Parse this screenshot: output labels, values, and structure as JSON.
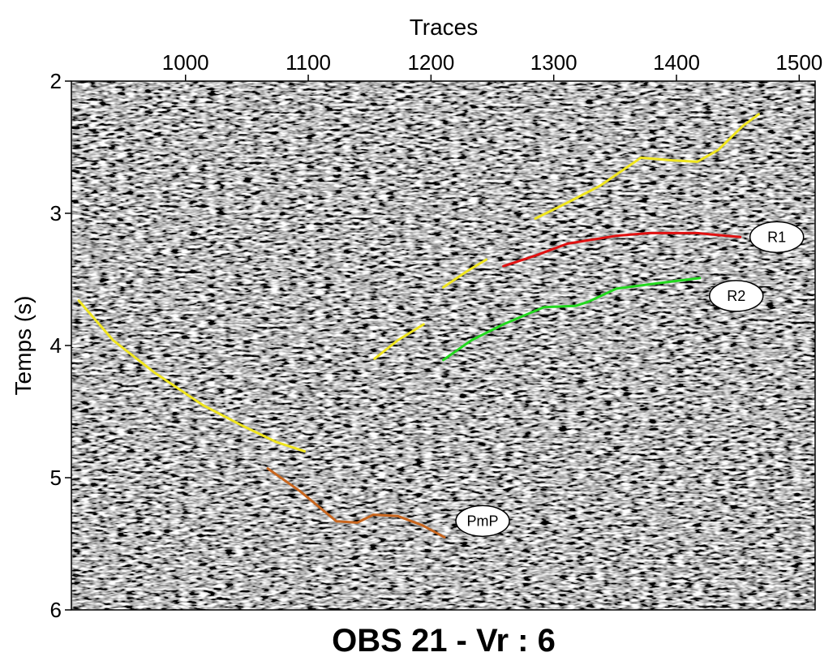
{
  "chart_data": {
    "type": "line",
    "title": "OBS 21 -  Vr : 6",
    "x_label": "Traces",
    "y_label": "Temps (s)",
    "xlim": [
      907,
      1513
    ],
    "ylim": [
      2,
      6
    ],
    "y_inverted": true,
    "x_axis_position": "top",
    "xticks": [
      1000,
      1100,
      1200,
      1300,
      1400,
      1500
    ],
    "yticks": [
      2,
      3,
      4,
      5,
      6
    ],
    "series": [
      {
        "color": "#f0e61e",
        "x": [
          913,
          941,
          974,
          1014,
          1047,
          1074,
          1097
        ],
        "values": [
          3.66,
          3.96,
          4.2,
          4.45,
          4.61,
          4.73,
          4.8
        ]
      },
      {
        "color": "#f0e61e",
        "x": [
          1154,
          1173,
          1194
        ],
        "values": [
          4.1,
          3.96,
          3.84
        ]
      },
      {
        "color": "#f0e61e",
        "x": [
          1210,
          1229,
          1245
        ],
        "values": [
          3.56,
          3.44,
          3.35
        ]
      },
      {
        "color": "#f0e61e",
        "x": [
          1285,
          1311,
          1338,
          1371,
          1397,
          1417,
          1434,
          1454,
          1467
        ],
        "values": [
          3.04,
          2.92,
          2.79,
          2.58,
          2.6,
          2.61,
          2.52,
          2.34,
          2.25
        ]
      },
      {
        "name": "R1",
        "color": "#e01010",
        "x": [
          1259,
          1285,
          1311,
          1351,
          1378,
          1417,
          1452
        ],
        "values": [
          3.4,
          3.32,
          3.23,
          3.17,
          3.15,
          3.15,
          3.18
        ]
      },
      {
        "name": "R2",
        "color": "#22d81e",
        "x": [
          1210,
          1233,
          1259,
          1292,
          1318,
          1328,
          1351,
          1384,
          1419
        ],
        "values": [
          4.11,
          3.96,
          3.84,
          3.71,
          3.7,
          3.67,
          3.57,
          3.53,
          3.49
        ]
      },
      {
        "name": "PmP",
        "color": "#c8661e",
        "x": [
          1067,
          1093,
          1123,
          1140,
          1153,
          1173,
          1193,
          1211
        ],
        "values": [
          4.93,
          5.1,
          5.33,
          5.34,
          5.28,
          5.29,
          5.36,
          5.45
        ]
      }
    ]
  }
}
